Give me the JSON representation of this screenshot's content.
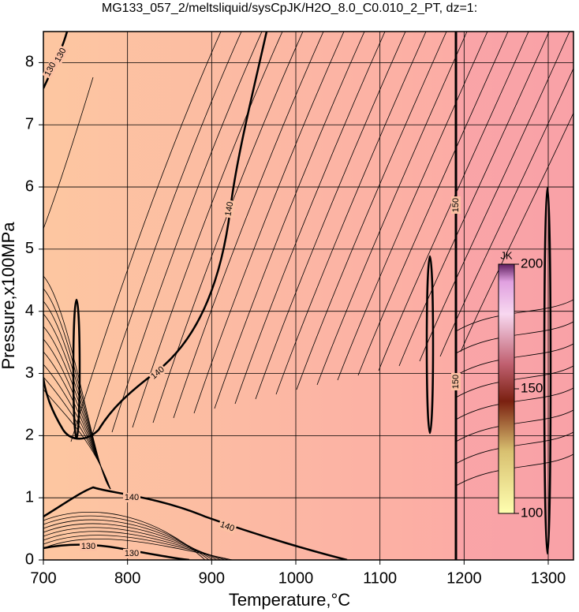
{
  "chart_data": {
    "type": "contour",
    "title": "MG133_057_2/meltsliquid/sysCpJK/H2O_8.0_C0.010_2_PT, dz=1:",
    "xlabel": "Temperature,°C",
    "ylabel": "Pressure,x100MPa",
    "xlim": [
      700,
      1330
    ],
    "ylim": [
      0,
      8.5
    ],
    "xticks": [
      700,
      800,
      900,
      1000,
      1100,
      1200,
      1300
    ],
    "yticks": [
      0,
      1,
      2,
      3,
      4,
      5,
      6,
      7,
      8
    ],
    "grid": true,
    "contour_labels": [
      130,
      130,
      140,
      140,
      140,
      140,
      130,
      130,
      150,
      150
    ],
    "colorbar": {
      "label": "JK",
      "lim": [
        100,
        200
      ],
      "ticks": [
        100,
        150,
        200
      ]
    }
  }
}
